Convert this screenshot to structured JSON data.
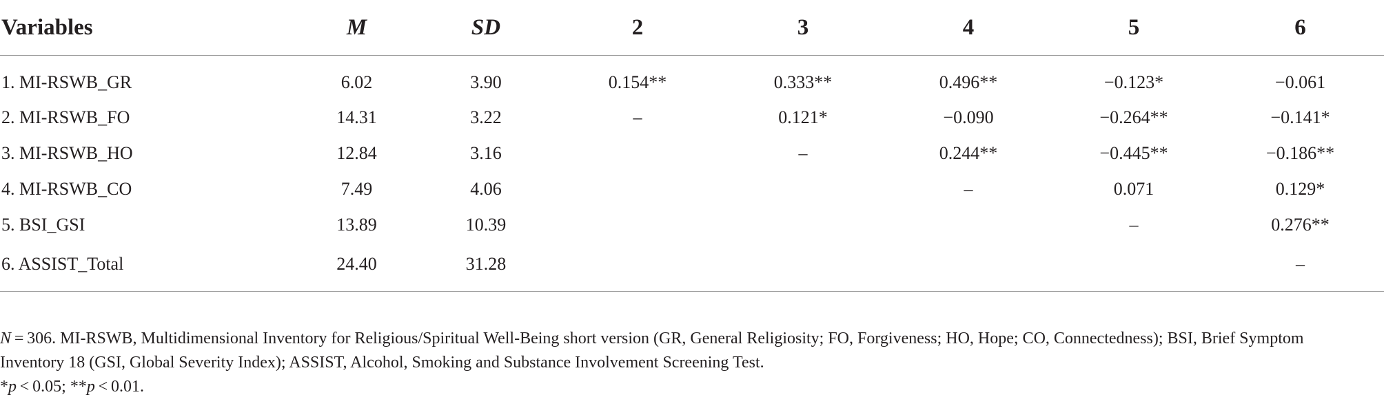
{
  "table": {
    "headers": [
      {
        "label": "Variables",
        "italic": false
      },
      {
        "label": "M",
        "italic": true
      },
      {
        "label": "SD",
        "italic": true
      },
      {
        "label": "2",
        "italic": false
      },
      {
        "label": "3",
        "italic": false
      },
      {
        "label": "4",
        "italic": false
      },
      {
        "label": "5",
        "italic": false
      },
      {
        "label": "6",
        "italic": false
      }
    ],
    "rows": [
      {
        "cells": [
          "1. MI-RSWB_GR",
          "6.02",
          "3.90",
          "0.154**",
          "0.333**",
          "0.496**",
          "−0.123*",
          "−0.061"
        ]
      },
      {
        "cells": [
          "2. MI-RSWB_FO",
          "14.31",
          "3.22",
          "–",
          "0.121*",
          "−0.090",
          "−0.264**",
          "−0.141*"
        ]
      },
      {
        "cells": [
          "3. MI-RSWB_HO",
          "12.84",
          "3.16",
          "",
          "–",
          "0.244**",
          "−0.445**",
          "−0.186**"
        ]
      },
      {
        "cells": [
          "4. MI-RSWB_CO",
          "7.49",
          "4.06",
          "",
          "",
          "–",
          "0.071",
          "0.129*"
        ]
      },
      {
        "cells": [
          "5. BSI_GSI",
          "13.89",
          "10.39",
          "",
          "",
          "",
          "–",
          "0.276**"
        ]
      },
      {
        "cells": [
          "6. ASSIST_Total",
          "24.40",
          "31.28",
          "",
          "",
          "",
          "",
          "–"
        ]
      }
    ]
  },
  "footnote": {
    "n_label": "N",
    "n_text": " = 306. MI-RSWB, Multidimensional Inventory for Religious/Spiritual Well-Being short version (GR, General Religiosity; FO, Forgiveness; HO, Hope; CO, Connectedness); BSI, Brief Symptom Inventory 18 (GSI, Global Severity Index); ASSIST, Alcohol, Smoking and Substance Involvement Screening Test.",
    "sig_1_star": "*",
    "sig_1_p": "p",
    "sig_1_text": " < 0.05; ",
    "sig_2_star": "**",
    "sig_2_p": "p",
    "sig_2_text": " < 0.01."
  }
}
